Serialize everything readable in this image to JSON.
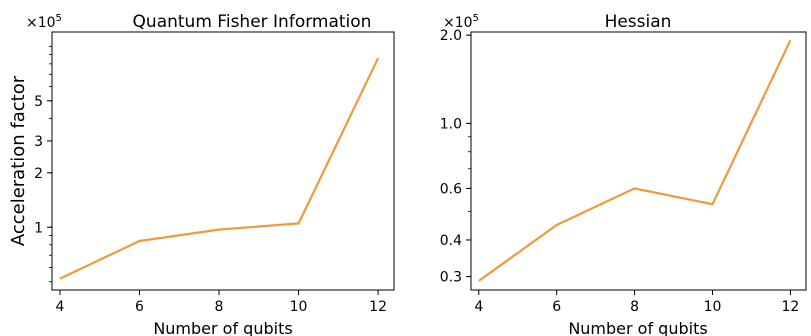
{
  "chart_data": [
    {
      "type": "line",
      "title": "Quantum Fisher Information",
      "xlabel": "Number of qubits",
      "ylabel": "Acceleration factor",
      "yscale": "log",
      "y_multiplier": "×10",
      "y_multiplier_exp": "5",
      "x": [
        4,
        6,
        8,
        10,
        12
      ],
      "values": [
        0.52,
        0.84,
        0.97,
        1.05,
        8.6
      ],
      "xlim": [
        3.8,
        12.4
      ],
      "ylim": [
        0.45,
        12.0
      ],
      "xticks": [
        4,
        6,
        8,
        10,
        12
      ],
      "yticks": [
        1,
        2,
        3,
        5
      ],
      "ytick_labels": [
        "1",
        "2",
        "3",
        "5"
      ],
      "grid": false,
      "color": "#ee9a3d"
    },
    {
      "type": "line",
      "title": "Hessian",
      "xlabel": "Number of qubits",
      "ylabel": "",
      "yscale": "log",
      "y_multiplier": "×10",
      "y_multiplier_exp": "5",
      "x": [
        4,
        6,
        8,
        10,
        12
      ],
      "values": [
        0.29,
        0.45,
        0.6,
        0.53,
        1.92
      ],
      "xlim": [
        3.8,
        12.4
      ],
      "ylim": [
        0.27,
        2.05
      ],
      "xticks": [
        4,
        6,
        8,
        10,
        12
      ],
      "yticks": [
        0.3,
        0.4,
        0.6,
        1.0,
        2.0
      ],
      "ytick_labels": [
        "0.3",
        "0.4",
        "0.6",
        "1.0",
        "2.0"
      ],
      "grid": false,
      "color": "#ee9a3d"
    }
  ]
}
